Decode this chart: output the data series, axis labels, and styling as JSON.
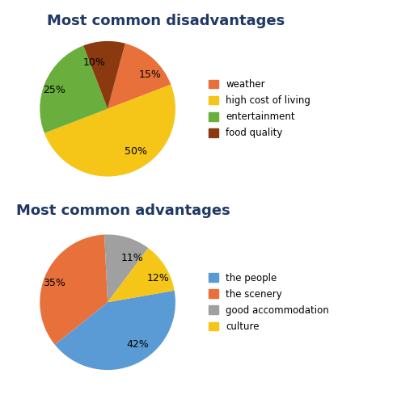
{
  "title1": "Most common disadvantages",
  "title2": "Most common advantages",
  "disadvantages": {
    "labels": [
      "15%",
      "50%",
      "25%",
      "10%"
    ],
    "values": [
      15,
      50,
      25,
      10
    ],
    "colors": [
      "#E8703A",
      "#F5C518",
      "#6AAF3D",
      "#8B3A10"
    ],
    "legend_labels": [
      "weather",
      "high cost of living",
      "entertainment",
      "food quality"
    ],
    "startangle": 75
  },
  "advantages": {
    "labels": [
      "42%",
      "35%",
      "11%",
      "12%"
    ],
    "values": [
      42,
      35,
      11,
      12
    ],
    "colors": [
      "#5B9BD5",
      "#E8703A",
      "#A0A0A0",
      "#F5C518"
    ],
    "legend_labels": [
      "the people",
      "the scenery",
      "good accommodation",
      "culture"
    ],
    "startangle": 10
  },
  "background_color": "#FFFFFF",
  "title1_fontsize": 13,
  "title2_fontsize": 13,
  "title_color": "#1F3864",
  "label_fontsize": 9,
  "legend_fontsize": 8.5
}
